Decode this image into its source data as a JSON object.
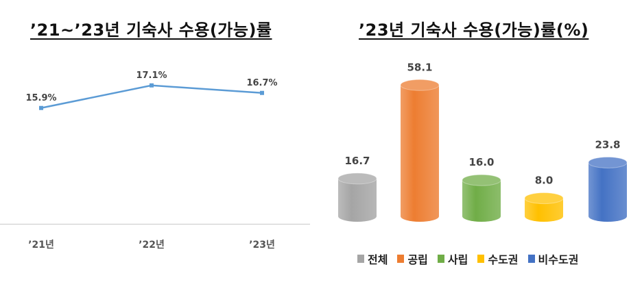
{
  "left_chart_title": "’21~’23년 기숙사 수용(가능)률",
  "right_chart_title": "’23년 기숙사 수용(가능)률(%)",
  "chart_data": [
    {
      "type": "line",
      "title": "’21~’23년 기숙사 수용(가능)률",
      "categories": [
        "’21년",
        "’22년",
        "’23년"
      ],
      "series": [
        {
          "values": [
            15.9,
            17.1,
            16.7
          ],
          "labels": [
            "15.9%",
            "17.1%",
            "16.7%"
          ],
          "color": "#5b9bd5"
        }
      ],
      "ylim": [
        10,
        18
      ],
      "grid": false
    },
    {
      "type": "bar",
      "title": "’23년 기숙사 수용(가능)률(%)",
      "categories": [
        "전체",
        "공립",
        "사립",
        "수도권",
        "비수도권"
      ],
      "values": [
        16.7,
        58.1,
        16.0,
        8.0,
        23.8
      ],
      "labels": [
        "16.7",
        "58.1",
        "16.0",
        "8.0",
        "23.8"
      ],
      "colors": [
        "#a5a5a5",
        "#ed7d31",
        "#70ad47",
        "#ffc000",
        "#4472c4"
      ],
      "ylim": [
        0,
        60
      ],
      "legend_position": "bottom",
      "grid": false
    }
  ]
}
